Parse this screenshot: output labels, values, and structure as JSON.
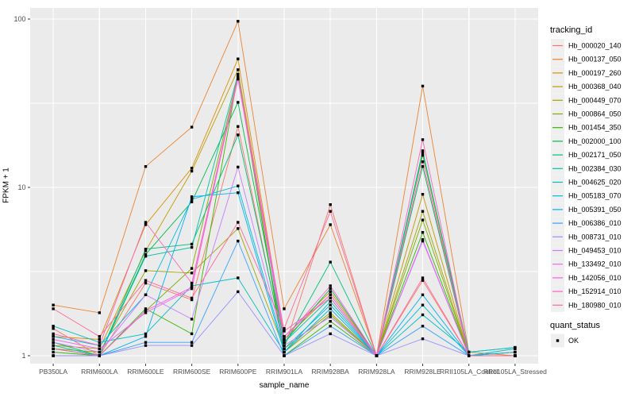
{
  "chart_data": {
    "type": "line",
    "title": "",
    "xlabel": "sample_name",
    "ylabel": "FPKM + 1",
    "y_scale": "log10",
    "y_ticks": [
      1,
      10,
      100
    ],
    "y_minor_ticks": [
      3.162,
      31.62
    ],
    "ylim": [
      1,
      110
    ],
    "grid": "on",
    "panel_bg": "#EBEBEB",
    "grid_color": "#FFFFFF",
    "tick_label_color": "#4D4D4D",
    "marker": "black-square",
    "marker_color": "#000000",
    "legend_position": "right",
    "legend_title": "tracking_id",
    "legend2_title": "quant_status",
    "legend2_items": [
      {
        "label": "OK",
        "marker": "square",
        "color": "#000000"
      }
    ],
    "categories": [
      "PB350LA",
      "RRIM600LA",
      "RRIM600LE",
      "RRIM600SE",
      "RRIM600PE",
      "RRIM901LA",
      "RRIM928BA",
      "RRIM928LA",
      "RRIM928LE",
      "RRII105LA_Control",
      "RRII105LA_Stressed"
    ],
    "series": [
      {
        "name": "Hb_000020_140",
        "color": "#F8766D",
        "values": [
          1.45,
          1.0,
          2.7,
          2.15,
          23.0,
          1.1,
          7.9,
          1.0,
          2.8,
          1.0,
          1.0
        ]
      },
      {
        "name": "Hb_000137_050",
        "color": "#EA8331",
        "values": [
          2.0,
          1.8,
          13.3,
          22.8,
          97.0,
          1.9,
          6.0,
          1.0,
          40.0,
          1.05,
          1.0
        ]
      },
      {
        "name": "Hb_000197_260",
        "color": "#D89000",
        "values": [
          1.3,
          1.25,
          6.0,
          13.0,
          58.0,
          1.3,
          2.4,
          1.0,
          15.5,
          1.0,
          1.05
        ]
      },
      {
        "name": "Hb_000368_040",
        "color": "#C09B00",
        "values": [
          1.15,
          1.1,
          4.2,
          12.5,
          50.0,
          1.25,
          2.3,
          1.0,
          9.1,
          1.0,
          1.1
        ]
      },
      {
        "name": "Hb_000449_070",
        "color": "#A3A500",
        "values": [
          1.1,
          1.05,
          3.2,
          3.1,
          5.7,
          1.1,
          1.8,
          1.0,
          7.2,
          1.0,
          1.05
        ]
      },
      {
        "name": "Hb_000864_050",
        "color": "#7CAE00",
        "values": [
          1.1,
          1.0,
          1.85,
          3.3,
          46.0,
          1.05,
          1.75,
          1.0,
          6.4,
          1.0,
          1.0
        ]
      },
      {
        "name": "Hb_001454_350",
        "color": "#39B600",
        "values": [
          1.05,
          1.0,
          1.9,
          1.35,
          46.5,
          1.0,
          1.6,
          1.0,
          5.4,
          1.0,
          1.0
        ]
      },
      {
        "name": "Hb_002000_100",
        "color": "#00BB4E",
        "values": [
          1.2,
          1.0,
          4.0,
          8.2,
          32.0,
          1.2,
          2.5,
          1.0,
          13.3,
          1.0,
          1.0
        ]
      },
      {
        "name": "Hb_002171_050",
        "color": "#00BF7D",
        "values": [
          1.1,
          1.0,
          4.3,
          4.6,
          20.5,
          1.15,
          3.6,
          1.0,
          16.5,
          1.0,
          1.0
        ]
      },
      {
        "name": "Hb_002384_030",
        "color": "#00C1A3",
        "values": [
          1.15,
          1.0,
          3.9,
          4.4,
          47.0,
          1.2,
          2.2,
          1.0,
          16.0,
          1.05,
          1.12
        ]
      },
      {
        "name": "Hb_004625_020",
        "color": "#00BFC4",
        "values": [
          1.5,
          1.2,
          1.35,
          2.6,
          2.9,
          1.05,
          2.1,
          1.0,
          1.75,
          1.05,
          1.12
        ]
      },
      {
        "name": "Hb_005183_070",
        "color": "#00BAE0",
        "values": [
          1.3,
          1.15,
          2.3,
          8.5,
          10.2,
          1.1,
          2.0,
          1.0,
          2.0,
          1.0,
          1.1
        ]
      },
      {
        "name": "Hb_005391_050",
        "color": "#00B0F6",
        "values": [
          1.0,
          1.0,
          1.3,
          8.8,
          9.3,
          1.05,
          1.9,
          1.0,
          2.3,
          1.0,
          1.05
        ]
      },
      {
        "name": "Hb_006386_010",
        "color": "#35A2FF",
        "values": [
          1.0,
          1.0,
          1.2,
          1.2,
          4.8,
          1.0,
          1.5,
          1.0,
          1.5,
          1.0,
          1.0
        ]
      },
      {
        "name": "Hb_008731_010",
        "color": "#9590FF",
        "values": [
          1.0,
          1.0,
          1.15,
          1.15,
          2.4,
          1.0,
          1.35,
          1.0,
          1.26,
          1.0,
          1.0
        ]
      },
      {
        "name": "Hb_049453_010",
        "color": "#C77CFF",
        "values": [
          1.2,
          1.05,
          2.3,
          1.65,
          13.2,
          1.15,
          1.7,
          1.0,
          4.8,
          1.0,
          1.0
        ]
      },
      {
        "name": "Hb_133492_010",
        "color": "#E76BF3",
        "values": [
          1.25,
          1.1,
          1.8,
          2.5,
          45.0,
          1.3,
          2.3,
          1.0,
          4.9,
          1.0,
          1.0
        ]
      },
      {
        "name": "Hb_142056_010",
        "color": "#FA62DB",
        "values": [
          1.1,
          1.0,
          1.85,
          2.55,
          44.0,
          1.25,
          2.6,
          1.0,
          14.2,
          1.0,
          1.0
        ]
      },
      {
        "name": "Hb_152914_010",
        "color": "#FF62BC",
        "values": [
          1.35,
          1.15,
          6.2,
          2.7,
          45.5,
          1.4,
          2.2,
          1.0,
          19.2,
          1.0,
          1.0
        ]
      },
      {
        "name": "Hb_180980_010",
        "color": "#FF6A98",
        "values": [
          1.9,
          1.3,
          2.8,
          2.2,
          6.2,
          1.45,
          7.2,
          1.0,
          2.9,
          1.0,
          1.0
        ]
      }
    ]
  }
}
